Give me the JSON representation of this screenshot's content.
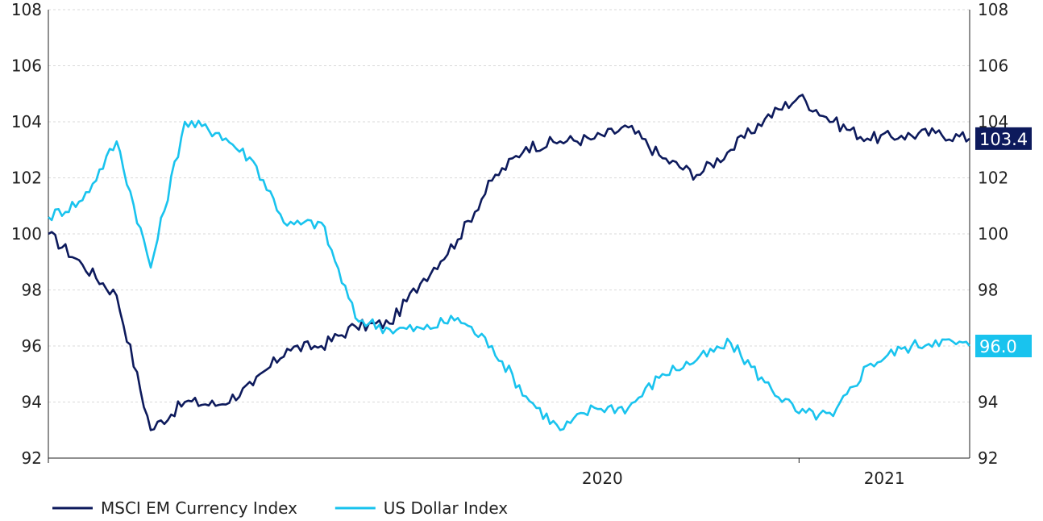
{
  "chart_data": {
    "type": "line",
    "title": "",
    "xlabel": "",
    "ylabel": "",
    "x_tick_labels": [
      "2020",
      "2021"
    ],
    "left_axis": {
      "ylim": [
        92,
        108
      ],
      "ticks": [
        92,
        94,
        96,
        98,
        100,
        102,
        104,
        106,
        108
      ]
    },
    "right_axis": {
      "ylim": [
        92,
        108
      ],
      "ticks": [
        92,
        94,
        96,
        98,
        100,
        102,
        104,
        106,
        108
      ]
    },
    "grid": "horizontal dashed",
    "legend_position": "bottom-left",
    "x": [
      "2019-03",
      "2019-04",
      "2019-05",
      "2019-06",
      "2019-07",
      "2019-08",
      "2019-09",
      "2019-10",
      "2019-11",
      "2019-12",
      "2020-01",
      "2020-02",
      "2020-03",
      "2020-04",
      "2020-05",
      "2020-06",
      "2020-07",
      "2020-08",
      "2020-09",
      "2020-10",
      "2020-11",
      "2020-12",
      "2021-01",
      "2021-02",
      "2021-03",
      "2021-04",
      "2021-05",
      "2021-06"
    ],
    "series": [
      {
        "name": "MSCI EM Currency Index",
        "color": "#0d1a5c",
        "axis": "left",
        "last_value_label": "103.4",
        "values": [
          100.0,
          98.9,
          97.8,
          93.0,
          94.0,
          93.9,
          94.6,
          95.9,
          96.0,
          96.7,
          96.8,
          98.4,
          99.8,
          101.9,
          103.1,
          103.3,
          103.4,
          103.8,
          102.7,
          102.1,
          103.0,
          104.1,
          104.9,
          104.0,
          103.4,
          103.5,
          103.6,
          103.4
        ]
      },
      {
        "name": "US Dollar Index",
        "color": "#19c3ee",
        "axis": "right",
        "last_value_label": "96.0",
        "values": [
          100.6,
          101.2,
          103.3,
          98.8,
          104.0,
          103.6,
          102.6,
          100.3,
          100.4,
          97.0,
          96.6,
          96.6,
          97.0,
          96.0,
          94.2,
          93.0,
          93.8,
          93.8,
          95.0,
          95.5,
          96.1,
          94.7,
          93.6,
          93.5,
          95.3,
          95.9,
          96.2,
          96.0
        ]
      }
    ]
  }
}
